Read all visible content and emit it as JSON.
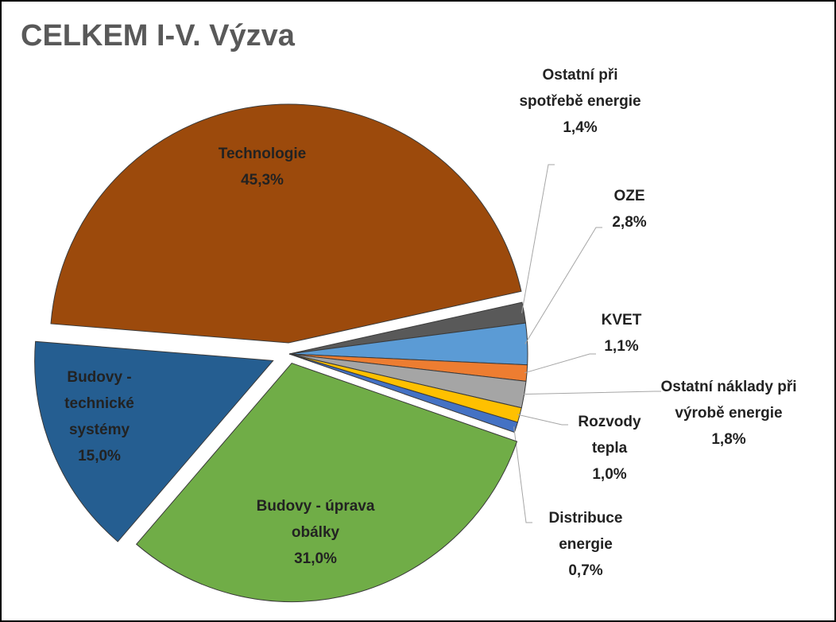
{
  "chart_data": {
    "type": "pie",
    "title": "CELKEM I-V. Výzva",
    "categories": [
      "Technologie",
      "Ostatní při spotřebě energie",
      "OZE",
      "KVET",
      "Ostatní náklady při výrobě energie",
      "Rozvody tepla",
      "Distribuce energie",
      "Budovy - úprava obálky",
      "Budovy - technické systémy"
    ],
    "values": [
      45.3,
      1.4,
      2.8,
      1.1,
      1.8,
      1.0,
      0.7,
      31.0,
      15.0
    ],
    "value_labels": [
      "45,3%",
      "1,4%",
      "2,8%",
      "1,1%",
      "1,8%",
      "1,0%",
      "0,7%",
      "31,0%",
      "15,0%"
    ],
    "colors": [
      "#9C4A0C",
      "#595959",
      "#5B9BD5",
      "#ED7D31",
      "#A5A5A5",
      "#FFC000",
      "#4472C4",
      "#70AD47",
      "#255E91"
    ]
  }
}
